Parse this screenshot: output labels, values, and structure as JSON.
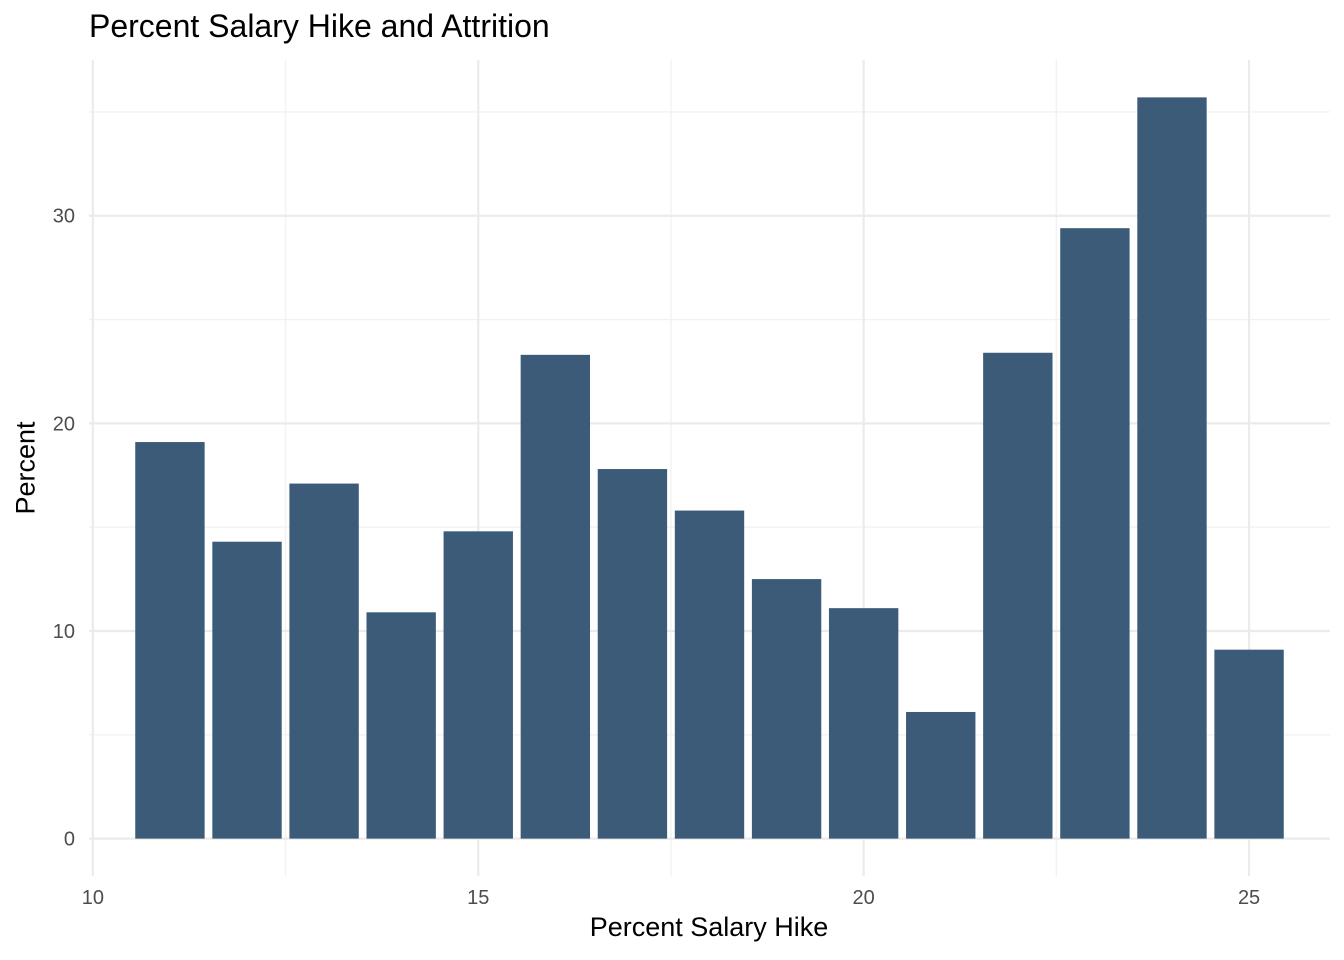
{
  "chart_data": {
    "type": "bar",
    "title": "Percent Salary Hike and Attrition",
    "xlabel": "Percent Salary Hike",
    "ylabel": "Percent",
    "x": [
      11,
      12,
      13,
      14,
      15,
      16,
      17,
      18,
      19,
      20,
      21,
      22,
      23,
      24,
      25
    ],
    "values": [
      19.1,
      14.3,
      17.1,
      10.9,
      14.8,
      23.3,
      17.8,
      15.8,
      12.5,
      11.1,
      6.1,
      23.4,
      29.4,
      35.7,
      9.1
    ],
    "xlim": [
      9.95,
      26.05
    ],
    "ylim": [
      -1.8,
      37.5
    ],
    "x_ticks": [
      "10",
      "15",
      "20",
      "25"
    ],
    "x_tick_values": [
      10,
      15,
      20,
      25
    ],
    "y_ticks": [
      "0",
      "10",
      "20",
      "30"
    ],
    "y_tick_values": [
      0,
      10,
      20,
      30
    ],
    "grid": true,
    "legend": "none",
    "bar_color": "#3b5b78",
    "grid_major_color": "#ebebeb",
    "grid_minor_color": "#f2f2f2",
    "tick_label_color": "#4d4d4d"
  }
}
